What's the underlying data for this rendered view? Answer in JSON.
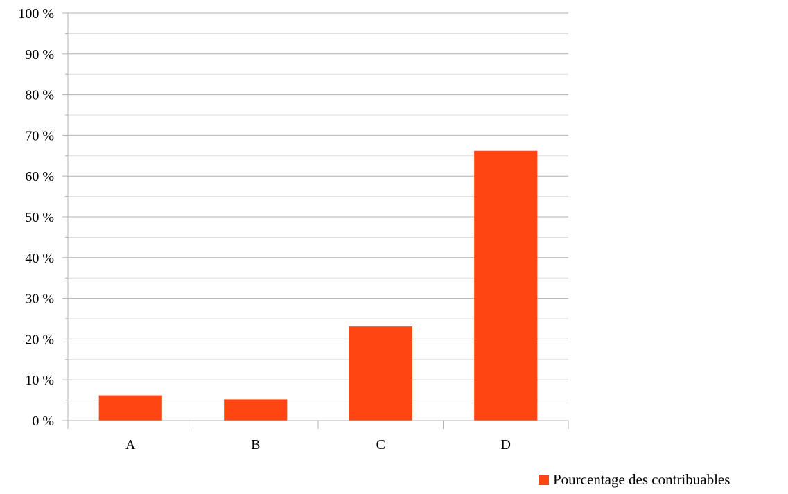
{
  "chart_data": {
    "type": "bar",
    "title": "",
    "xlabel": "",
    "ylabel": "",
    "categories": [
      "A",
      "B",
      "C",
      "D"
    ],
    "series": [
      {
        "name": "Pourcentage des contribuables",
        "values": [
          6.2,
          5.2,
          23.1,
          66.2
        ],
        "color": "#ff4511"
      }
    ],
    "ylim": [
      0,
      100
    ],
    "yticks": [
      0,
      10,
      20,
      30,
      40,
      50,
      60,
      70,
      80,
      90,
      100
    ],
    "ytick_labels": [
      "0 %",
      "10 %",
      "20 %",
      "30 %",
      "40 %",
      "50 %",
      "60 %",
      "70 %",
      "80 %",
      "90 %",
      "100 %"
    ],
    "grid": true,
    "minor_grid": true,
    "legend_position": "bottom-right"
  }
}
